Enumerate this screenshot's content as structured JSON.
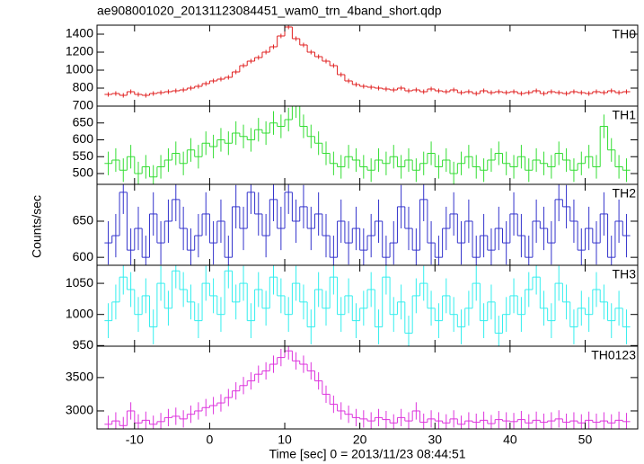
{
  "title": "ae908001020_20131123084451_wam0_trn_4band_short.qdp",
  "ylabel": "Counts/sec",
  "x_axis": {
    "label": "Time [sec] 0 = 2013/11/23 08:44:51",
    "xlim": [
      -15,
      57
    ],
    "xticks": [
      -10,
      0,
      10,
      20,
      30,
      40,
      50
    ],
    "x": [
      -13.5,
      -12.5,
      -11.5,
      -10.5,
      -9.5,
      -8.5,
      -7.5,
      -6.5,
      -5.5,
      -4.5,
      -3.5,
      -2.5,
      -1.5,
      -0.5,
      0.5,
      1.5,
      2.5,
      3.5,
      4.5,
      5.5,
      6.5,
      7.5,
      8.5,
      9.5,
      10.5,
      11.5,
      12.5,
      13.5,
      14.5,
      15.5,
      16.5,
      17.5,
      18.5,
      19.5,
      20.5,
      21.5,
      22.5,
      23.5,
      24.5,
      25.5,
      26.5,
      27.5,
      28.5,
      29.5,
      30.5,
      31.5,
      32.5,
      33.5,
      34.5,
      35.5,
      36.5,
      37.5,
      38.5,
      39.5,
      40.5,
      41.5,
      42.5,
      43.5,
      44.5,
      45.5,
      46.5,
      47.5,
      48.5,
      49.5,
      50.5,
      51.5,
      52.5,
      53.5,
      54.5,
      55.5
    ]
  },
  "chart_data": [
    {
      "type": "step",
      "name": "TH0",
      "color": "#e02020",
      "error": 25,
      "ylim": [
        600,
        1500
      ],
      "yticks": [
        800,
        1000,
        1200,
        1400
      ],
      "values": [
        730,
        740,
        720,
        760,
        730,
        720,
        740,
        750,
        760,
        770,
        780,
        800,
        820,
        850,
        880,
        900,
        920,
        980,
        1050,
        1100,
        1140,
        1200,
        1260,
        1380,
        1480,
        1350,
        1280,
        1200,
        1150,
        1100,
        1050,
        950,
        880,
        840,
        820,
        810,
        800,
        790,
        780,
        800,
        770,
        780,
        760,
        790,
        770,
        760,
        780,
        750,
        760,
        740,
        770,
        750,
        760,
        750,
        760,
        740,
        750,
        770,
        740,
        760,
        750,
        740,
        760,
        750,
        740,
        760,
        750,
        770,
        750,
        760
      ]
    },
    {
      "type": "step",
      "name": "TH1",
      "color": "#33dd33",
      "error": 35,
      "ylim": [
        468,
        700
      ],
      "yticks": [
        500,
        550,
        600,
        650,
        700
      ],
      "values": [
        530,
        540,
        510,
        550,
        500,
        520,
        490,
        520,
        540,
        560,
        530,
        570,
        550,
        590,
        580,
        600,
        590,
        620,
        610,
        600,
        630,
        620,
        650,
        640,
        660,
        700,
        640,
        610,
        590,
        560,
        530,
        520,
        550,
        540,
        520,
        510,
        540,
        530,
        550,
        520,
        540,
        510,
        530,
        560,
        520,
        540,
        500,
        530,
        550,
        520,
        510,
        540,
        560,
        530,
        520,
        550,
        510,
        540,
        530,
        520,
        560,
        540,
        510,
        530,
        550,
        520,
        640,
        570,
        520,
        510
      ]
    },
    {
      "type": "step",
      "name": "TH2",
      "color": "#3333cc",
      "error": 30,
      "ylim": [
        589,
        701
      ],
      "yticks": [
        600,
        650
      ],
      "values": [
        620,
        630,
        690,
        610,
        640,
        600,
        660,
        620,
        650,
        680,
        640,
        610,
        630,
        660,
        620,
        650,
        600,
        670,
        640,
        690,
        660,
        630,
        680,
        640,
        690,
        650,
        670,
        640,
        660,
        630,
        600,
        650,
        620,
        640,
        610,
        630,
        650,
        600,
        620,
        670,
        640,
        610,
        680,
        620,
        600,
        640,
        660,
        620,
        650,
        600,
        630,
        610,
        640,
        620,
        660,
        630,
        600,
        650,
        640,
        620,
        680,
        670,
        650,
        610,
        640,
        620,
        660,
        600,
        650,
        630
      ]
    },
    {
      "type": "step",
      "name": "TH3",
      "color": "#33eeee",
      "error": 28,
      "ylim": [
        949,
        1079
      ],
      "yticks": [
        950,
        1000,
        1050
      ],
      "values": [
        990,
        1020,
        1060,
        1040,
        1000,
        1030,
        980,
        1050,
        1010,
        1070,
        1040,
        1020,
        990,
        1050,
        1030,
        1000,
        1070,
        1020,
        1050,
        990,
        1040,
        1010,
        1060,
        1030,
        1000,
        1050,
        1020,
        980,
        1040,
        1010,
        1060,
        1000,
        1030,
        990,
        1010,
        1040,
        980,
        1060,
        1000,
        1020,
        970,
        1030,
        1050,
        1010,
        990,
        1030,
        1000,
        980,
        1010,
        1050,
        990,
        1020,
        970,
        1000,
        1030,
        1000,
        1040,
        1060,
        1010,
        990,
        1050,
        1020,
        980,
        1010,
        1000,
        1040,
        1020,
        990,
        1010,
        980
      ]
    },
    {
      "type": "step",
      "name": "TH0123",
      "color": "#dd33dd",
      "error": 130,
      "ylim": [
        2730,
        3970
      ],
      "yticks": [
        3000,
        3500
      ],
      "values": [
        2800,
        2850,
        2780,
        3000,
        2820,
        2860,
        2800,
        2840,
        2900,
        2920,
        2880,
        2950,
        3000,
        3050,
        3080,
        3120,
        3200,
        3300,
        3380,
        3450,
        3550,
        3600,
        3700,
        3800,
        3900,
        3750,
        3700,
        3600,
        3450,
        3250,
        3100,
        3000,
        2950,
        2900,
        2880,
        2850,
        2900,
        2870,
        2820,
        2900,
        2850,
        3000,
        2830,
        2880,
        2850,
        2820,
        2880,
        2800,
        2850,
        2830,
        2860,
        2810,
        2870,
        2850,
        2840,
        2870,
        2820,
        2860,
        2830,
        2850,
        2880,
        2830,
        2850,
        2820,
        2860,
        2830,
        2850,
        2820,
        2860,
        2840
      ]
    }
  ]
}
